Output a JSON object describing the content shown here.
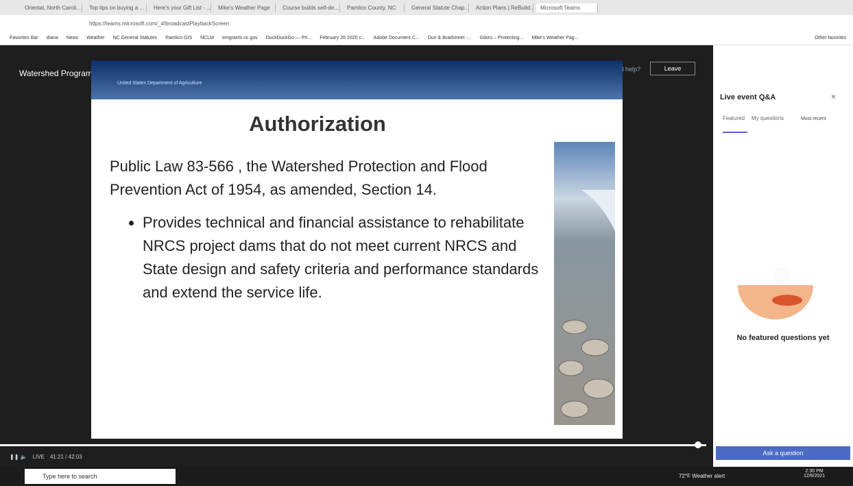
{
  "browser": {
    "tabs": [
      "Oriental, North Caroli...",
      "Top tips on buying a ...",
      "Here's your Gift List - ...",
      "Mike's Weather Page",
      "Course builds self-de...",
      "Pamlico County, NC",
      "General Statute Chap...",
      "Action Plans | ReBuild...",
      "Microsoft Teams"
    ],
    "url": "https://teams.microsoft.com/_#/broadcastPlaybackScreen",
    "bookmarks": [
      "Favorites Bar",
      "diana",
      "News",
      "Weather",
      "NC General Statutes",
      "Pamlico GIS",
      "NCLM",
      "emgrants.nc.gov",
      "DuckDuckGo — Pri...",
      "February 26 2020 c...",
      "Adobe Document C...",
      "Dun & Bradstreet -...",
      "Gibiru – Protecting...",
      "Mike's Weather Pag..."
    ],
    "other_favorites": "Other favorites"
  },
  "event": {
    "title": "Watershed Programs - Training",
    "help": "Need help?",
    "leave": "Leave"
  },
  "slide": {
    "agency": "United States Department of Agriculture",
    "title": "Authorization",
    "body": "Public Law 83-566 , the Watershed Protection and Flood Prevention Act of 1954, as amended, Section 14.",
    "bullets": [
      "Provides technical and financial assistance to rehabilitate NRCS project dams that do not meet current NRCS and State design and safety criteria and performance standards and extend the service life."
    ]
  },
  "player": {
    "live": "LIVE",
    "time": "41:21 / 42:03"
  },
  "qa": {
    "title": "Live event Q&A",
    "tabs": [
      "Featured",
      "My questions"
    ],
    "sort": "Most recent",
    "empty": "No featured questions yet",
    "ask": "Ask a question"
  },
  "taskbar": {
    "search": "Type here to search",
    "weather": "72°F  Weather alert",
    "time": "2:30 PM",
    "date": "12/6/2021"
  }
}
